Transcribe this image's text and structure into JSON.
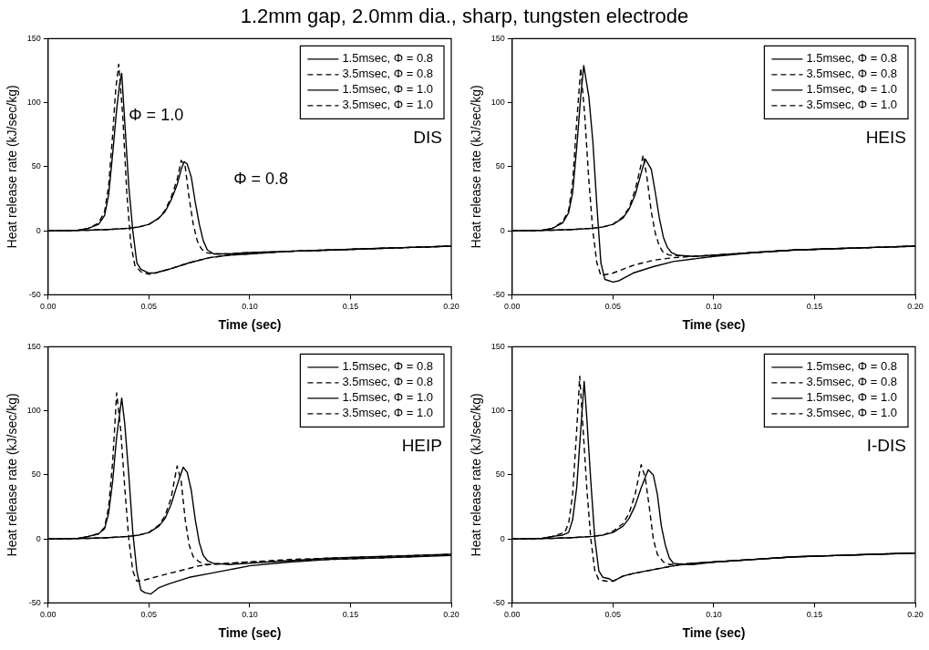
{
  "chart_data": [
    {
      "type": "line",
      "title": "1.2mm gap, 2.0mm dia., sharp, tungsten electrode",
      "xlabel": "Time (sec)",
      "ylabel": "Heat release rate (kJ/sec/kg)",
      "xlim": [
        0,
        0.2
      ],
      "ylim": [
        -50,
        150
      ],
      "xticks": [
        {
          "value": 0,
          "label": "0.00"
        },
        {
          "value": 0.05,
          "label": "0.05"
        },
        {
          "value": 0.1,
          "label": "0.10"
        },
        {
          "value": 0.15,
          "label": "0.15"
        },
        {
          "value": 0.2,
          "label": "0.20"
        }
      ],
      "yticks": [
        -50,
        0,
        50,
        100,
        150
      ],
      "legend": "top right",
      "marker": "none",
      "annotations": [
        "DIS",
        "Φ = 1.0",
        "Φ = 0.8"
      ],
      "series": [
        {
          "name": "1.5msec, Φ = 0.8",
          "color": "#000000",
          "line_style": "solid",
          "x": [
            0,
            0.02,
            0.03,
            0.04,
            0.045,
            0.05,
            0.055,
            0.058,
            0.061,
            0.064,
            0.066,
            0.0675,
            0.069,
            0.071,
            0.073,
            0.075,
            0.077,
            0.079,
            0.082,
            0.09,
            0.1,
            0.12,
            0.14,
            0.16,
            0.18,
            0.2
          ],
          "values": [
            0,
            0.5,
            1,
            2,
            3,
            5,
            10,
            15,
            24,
            36,
            48,
            54,
            52,
            42,
            22,
            5,
            -8,
            -15,
            -18,
            -18,
            -17,
            -16,
            -15,
            -14,
            -13,
            -12
          ]
        },
        {
          "name": "3.5msec, Φ = 0.8",
          "color": "#000000",
          "line_style": "dashed",
          "x": [
            0,
            0.02,
            0.03,
            0.04,
            0.045,
            0.05,
            0.055,
            0.058,
            0.061,
            0.064,
            0.066,
            0.068,
            0.07,
            0.072,
            0.074,
            0.076,
            0.078,
            0.082,
            0.09,
            0.1,
            0.12,
            0.14,
            0.16,
            0.18,
            0.2
          ],
          "values": [
            0,
            0.5,
            1,
            2,
            3,
            5,
            10,
            16,
            26,
            40,
            55,
            50,
            25,
            5,
            -8,
            -14,
            -17,
            -18,
            -18,
            -17,
            -16,
            -15,
            -14,
            -13,
            -12
          ]
        },
        {
          "name": "1.5msec, Φ = 1.0",
          "color": "#000000",
          "line_style": "solid",
          "x": [
            0,
            0.01,
            0.015,
            0.02,
            0.025,
            0.028,
            0.03,
            0.032,
            0.034,
            0.0355,
            0.0365,
            0.038,
            0.04,
            0.042,
            0.044,
            0.046,
            0.05,
            0.053,
            0.06,
            0.07,
            0.08,
            0.09,
            0.1,
            0.12,
            0.14,
            0.16,
            0.18,
            0.2
          ],
          "values": [
            0,
            0,
            0.5,
            2,
            5,
            12,
            28,
            60,
            95,
            115,
            123,
            85,
            35,
            0,
            -25,
            -30,
            -33,
            -33,
            -30,
            -25,
            -21,
            -19,
            -18,
            -16,
            -15,
            -14,
            -13,
            -12
          ]
        },
        {
          "name": "3.5msec, Φ = 1.0",
          "color": "#000000",
          "line_style": "dashed",
          "x": [
            0,
            0.01,
            0.015,
            0.02,
            0.025,
            0.028,
            0.03,
            0.032,
            0.0335,
            0.035,
            0.037,
            0.039,
            0.041,
            0.043,
            0.046,
            0.05,
            0.053,
            0.06,
            0.07,
            0.08,
            0.09,
            0.1,
            0.12,
            0.14,
            0.16,
            0.18,
            0.2
          ],
          "values": [
            0,
            0,
            0.5,
            2,
            6,
            15,
            35,
            75,
            110,
            130,
            90,
            30,
            -10,
            -27,
            -32,
            -34,
            -33,
            -30,
            -25,
            -21,
            -19,
            -18,
            -16,
            -15,
            -14,
            -13,
            -12
          ]
        }
      ]
    },
    {
      "type": "line",
      "xlabel": "Time (sec)",
      "ylabel": "Heat release rate (kJ/sec/kg)",
      "xlim": [
        0,
        0.2
      ],
      "ylim": [
        -50,
        150
      ],
      "xticks": [
        {
          "value": 0,
          "label": "0.00"
        },
        {
          "value": 0.05,
          "label": "0.05"
        },
        {
          "value": 0.1,
          "label": "0.10"
        },
        {
          "value": 0.15,
          "label": "0.15"
        },
        {
          "value": 0.2,
          "label": "0.20"
        }
      ],
      "yticks": [
        -50,
        0,
        50,
        100,
        150
      ],
      "legend": "top right",
      "marker": "none",
      "annotations": [
        "HEIS"
      ],
      "series": [
        {
          "name": "1.5msec, Φ = 0.8",
          "color": "#000000",
          "line_style": "solid",
          "x": [
            0,
            0.02,
            0.03,
            0.04,
            0.045,
            0.05,
            0.055,
            0.058,
            0.061,
            0.064,
            0.066,
            0.069,
            0.071,
            0.073,
            0.075,
            0.077,
            0.079,
            0.082,
            0.09,
            0.1,
            0.12,
            0.14,
            0.16,
            0.18,
            0.2
          ],
          "values": [
            0,
            0.5,
            1,
            2,
            3,
            5,
            10,
            17,
            28,
            45,
            56,
            48,
            30,
            10,
            -5,
            -13,
            -17,
            -19,
            -20,
            -19,
            -17,
            -15,
            -14,
            -13,
            -12
          ]
        },
        {
          "name": "3.5msec, Φ = 0.8",
          "color": "#000000",
          "line_style": "dashed",
          "x": [
            0,
            0.02,
            0.03,
            0.04,
            0.045,
            0.05,
            0.055,
            0.058,
            0.061,
            0.063,
            0.065,
            0.067,
            0.069,
            0.071,
            0.073,
            0.075,
            0.078,
            0.09,
            0.1,
            0.12,
            0.14,
            0.16,
            0.18,
            0.2
          ],
          "values": [
            0,
            0.5,
            1,
            2,
            3,
            5,
            11,
            18,
            32,
            45,
            59,
            40,
            15,
            -2,
            -12,
            -17,
            -19,
            -20,
            -19,
            -17,
            -15,
            -14,
            -13,
            -12
          ]
        },
        {
          "name": "1.5msec, Φ = 1.0",
          "color": "#000000",
          "line_style": "solid",
          "x": [
            0,
            0.01,
            0.015,
            0.02,
            0.025,
            0.028,
            0.03,
            0.032,
            0.034,
            0.0355,
            0.038,
            0.04,
            0.042,
            0.044,
            0.046,
            0.05,
            0.053,
            0.06,
            0.07,
            0.08,
            0.09,
            0.1,
            0.12,
            0.14,
            0.16,
            0.18,
            0.2
          ],
          "values": [
            0,
            0,
            0.5,
            2,
            6,
            14,
            30,
            65,
            105,
            129,
            105,
            70,
            20,
            -25,
            -38,
            -40,
            -39,
            -33,
            -28,
            -24,
            -22,
            -20,
            -17,
            -15,
            -14,
            -13,
            -12
          ]
        },
        {
          "name": "3.5msec, Φ = 1.0",
          "color": "#000000",
          "line_style": "dashed",
          "x": [
            0,
            0.01,
            0.015,
            0.02,
            0.025,
            0.028,
            0.03,
            0.032,
            0.034,
            0.036,
            0.038,
            0.04,
            0.042,
            0.044,
            0.05,
            0.06,
            0.07,
            0.075,
            0.08,
            0.09,
            0.1,
            0.12,
            0.14,
            0.16,
            0.18,
            0.2
          ],
          "values": [
            0,
            0,
            0.5,
            2,
            7,
            16,
            38,
            85,
            127,
            90,
            40,
            0,
            -25,
            -35,
            -33,
            -27,
            -23,
            -22,
            -21,
            -20,
            -19,
            -17,
            -15,
            -14,
            -13,
            -12
          ]
        }
      ]
    },
    {
      "type": "line",
      "xlabel": "Time (sec)",
      "ylabel": "Heat release rate (kJ/sec/kg)",
      "xlim": [
        0,
        0.2
      ],
      "ylim": [
        -50,
        150
      ],
      "xticks": [
        {
          "value": 0,
          "label": "0.00"
        },
        {
          "value": 0.05,
          "label": "0.05"
        },
        {
          "value": 0.1,
          "label": "0.10"
        },
        {
          "value": 0.15,
          "label": "0.15"
        },
        {
          "value": 0.2,
          "label": "0.20"
        }
      ],
      "yticks": [
        -50,
        0,
        50,
        100,
        150
      ],
      "legend": "top right",
      "marker": "none",
      "annotations": [
        "HEIP"
      ],
      "series": [
        {
          "name": "1.5msec, Φ = 0.8",
          "color": "#000000",
          "line_style": "solid",
          "x": [
            0,
            0.02,
            0.03,
            0.04,
            0.045,
            0.05,
            0.055,
            0.058,
            0.061,
            0.064,
            0.067,
            0.069,
            0.071,
            0.073,
            0.075,
            0.077,
            0.079,
            0.082,
            0.09,
            0.1,
            0.12,
            0.14,
            0.16,
            0.18,
            0.2
          ],
          "values": [
            0,
            0.5,
            1,
            2,
            3,
            5,
            10,
            16,
            27,
            42,
            56,
            52,
            38,
            15,
            -3,
            -13,
            -17,
            -19,
            -20,
            -19,
            -17,
            -15,
            -14,
            -13,
            -12
          ]
        },
        {
          "name": "3.5msec, Φ = 0.8",
          "color": "#000000",
          "line_style": "dashed",
          "x": [
            0,
            0.02,
            0.03,
            0.04,
            0.045,
            0.05,
            0.055,
            0.058,
            0.061,
            0.064,
            0.066,
            0.068,
            0.07,
            0.072,
            0.075,
            0.078,
            0.09,
            0.1,
            0.12,
            0.14,
            0.16,
            0.18,
            0.2
          ],
          "values": [
            0,
            0.5,
            1,
            2,
            3,
            5,
            11,
            18,
            32,
            57,
            45,
            15,
            -5,
            -14,
            -18,
            -20,
            -19,
            -18,
            -16,
            -15,
            -14,
            -13,
            -12
          ]
        },
        {
          "name": "1.5msec, Φ = 1.0",
          "color": "#000000",
          "line_style": "solid",
          "x": [
            0,
            0.01,
            0.015,
            0.02,
            0.025,
            0.028,
            0.03,
            0.032,
            0.034,
            0.0365,
            0.038,
            0.04,
            0.042,
            0.044,
            0.046,
            0.048,
            0.051,
            0.055,
            0.06,
            0.07,
            0.08,
            0.09,
            0.1,
            0.12,
            0.14,
            0.16,
            0.18,
            0.2
          ],
          "values": [
            0,
            0,
            0.5,
            2,
            4,
            8,
            20,
            45,
            80,
            110,
            90,
            50,
            5,
            -25,
            -40,
            -42,
            -43,
            -38,
            -35,
            -30,
            -27,
            -24,
            -21,
            -18,
            -16,
            -15,
            -14,
            -13
          ]
        },
        {
          "name": "3.5msec, Φ = 1.0",
          "color": "#000000",
          "line_style": "dashed",
          "x": [
            0,
            0.01,
            0.015,
            0.02,
            0.025,
            0.028,
            0.03,
            0.032,
            0.034,
            0.036,
            0.038,
            0.04,
            0.042,
            0.044,
            0.048,
            0.055,
            0.065,
            0.075,
            0.08,
            0.09,
            0.1,
            0.12,
            0.14,
            0.16,
            0.18,
            0.2
          ],
          "values": [
            0,
            0,
            0.5,
            2,
            4,
            9,
            25,
            60,
            114,
            85,
            40,
            0,
            -25,
            -33,
            -32,
            -29,
            -25,
            -21,
            -20,
            -19,
            -18,
            -17,
            -16,
            -15,
            -14,
            -12
          ]
        }
      ]
    },
    {
      "type": "line",
      "xlabel": "Time (sec)",
      "ylabel": "Heat release rate (kJ/sec/kg)",
      "xlim": [
        0,
        0.2
      ],
      "ylim": [
        -50,
        150
      ],
      "xticks": [
        {
          "value": 0,
          "label": "0.00"
        },
        {
          "value": 0.05,
          "label": "0.05"
        },
        {
          "value": 0.1,
          "label": "0.10"
        },
        {
          "value": 0.15,
          "label": "0.15"
        },
        {
          "value": 0.2,
          "label": "0.20"
        }
      ],
      "yticks": [
        -50,
        0,
        50,
        100,
        150
      ],
      "legend": "top right",
      "marker": "none",
      "annotations": [
        "I-DIS"
      ],
      "series": [
        {
          "name": "1.5msec, Φ = 0.8",
          "color": "#000000",
          "line_style": "solid",
          "x": [
            0,
            0.02,
            0.03,
            0.04,
            0.045,
            0.05,
            0.055,
            0.058,
            0.061,
            0.064,
            0.0675,
            0.07,
            0.072,
            0.074,
            0.076,
            0.078,
            0.08,
            0.085,
            0.09,
            0.1,
            0.12,
            0.14,
            0.16,
            0.18,
            0.2
          ],
          "values": [
            0,
            0.5,
            1,
            2,
            3,
            5,
            10,
            16,
            26,
            40,
            54,
            50,
            35,
            10,
            -5,
            -15,
            -19,
            -20,
            -20,
            -18,
            -16,
            -14,
            -13,
            -12,
            -11
          ]
        },
        {
          "name": "3.5msec, Φ = 0.8",
          "color": "#000000",
          "line_style": "dashed",
          "x": [
            0,
            0.02,
            0.03,
            0.04,
            0.045,
            0.05,
            0.055,
            0.058,
            0.061,
            0.064,
            0.066,
            0.068,
            0.07,
            0.072,
            0.075,
            0.078,
            0.09,
            0.1,
            0.12,
            0.14,
            0.16,
            0.18,
            0.2
          ],
          "values": [
            0,
            0.5,
            1,
            2,
            3,
            6,
            12,
            20,
            35,
            58,
            48,
            25,
            0,
            -12,
            -18,
            -20,
            -19,
            -18,
            -16,
            -14,
            -13,
            -12,
            -11
          ]
        },
        {
          "name": "1.5msec, Φ = 1.0",
          "color": "#000000",
          "line_style": "solid",
          "x": [
            0,
            0.01,
            0.015,
            0.02,
            0.025,
            0.028,
            0.03,
            0.032,
            0.034,
            0.0357,
            0.037,
            0.039,
            0.041,
            0.043,
            0.045,
            0.048,
            0.05,
            0.055,
            0.06,
            0.07,
            0.08,
            0.09,
            0.1,
            0.12,
            0.14,
            0.16,
            0.18,
            0.2
          ],
          "values": [
            0,
            0,
            0.5,
            2,
            3,
            5,
            15,
            40,
            85,
            123,
            95,
            45,
            0,
            -25,
            -30,
            -31,
            -33,
            -29,
            -27,
            -24,
            -21,
            -19,
            -18,
            -16,
            -14,
            -13,
            -12,
            -11
          ]
        },
        {
          "name": "3.5msec, Φ = 1.0",
          "color": "#000000",
          "line_style": "dashed",
          "x": [
            0,
            0.01,
            0.015,
            0.02,
            0.026,
            0.028,
            0.03,
            0.032,
            0.0335,
            0.035,
            0.037,
            0.039,
            0.041,
            0.043,
            0.047,
            0.05,
            0.055,
            0.06,
            0.07,
            0.08,
            0.09,
            0.1,
            0.12,
            0.14,
            0.16,
            0.18,
            0.2
          ],
          "values": [
            0,
            0,
            0.5,
            2,
            5,
            12,
            35,
            85,
            127,
            90,
            40,
            0,
            -25,
            -32,
            -33,
            -33,
            -29,
            -27,
            -24,
            -21,
            -19,
            -18,
            -16,
            -14,
            -13,
            -12,
            -11
          ]
        }
      ]
    }
  ]
}
